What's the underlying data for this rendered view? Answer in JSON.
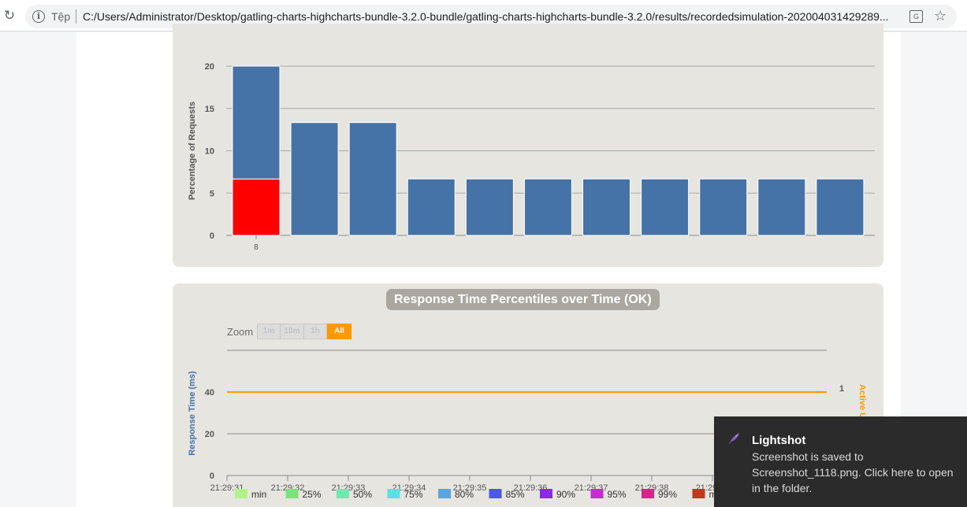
{
  "browser": {
    "site_label": "Tệp",
    "url": "C:/Users/Administrator/Desktop/gatling-charts-highcharts-bundle-3.2.0-bundle/gatling-charts-highcharts-bundle-3.2.0/results/recordedsimulation-202004031429289..."
  },
  "colors": {
    "panel_bg": "#e6e5e0",
    "bar_blue": "#4572a7",
    "bar_red": "#ff0000",
    "active_users": "#ff9900",
    "axis_label_blue": "#4572a7"
  },
  "chart_data": [
    {
      "type": "bar",
      "ylabel": "Percentage of Requests",
      "ylim": [
        0,
        20
      ],
      "yticks": [
        0,
        5,
        10,
        15,
        20
      ],
      "categories": [
        "8",
        "",
        "",
        "",
        "",
        "",
        "",
        "",
        "",
        "",
        ""
      ],
      "series": [
        {
          "color": "#4572a7",
          "values": [
            13.33,
            13.33,
            13.33,
            6.67,
            6.67,
            6.67,
            6.67,
            6.67,
            6.67,
            6.67,
            6.67
          ]
        },
        {
          "color": "#ff0000",
          "values": [
            6.67,
            0,
            0,
            0,
            0,
            0,
            0,
            0,
            0,
            0,
            0
          ]
        }
      ],
      "stacked": true,
      "grid": true
    },
    {
      "type": "line",
      "title": "Response Time Percentiles over Time (OK)",
      "ylabel": "Response Time (ms)",
      "y2label": "Active Users",
      "yticks": [
        0,
        20,
        40
      ],
      "y2ticks": [
        1
      ],
      "x": [
        "21:29:31",
        "21:29:32",
        "21:29:33",
        "21:29:34",
        "21:29:35",
        "21:29:36",
        "21:29:37",
        "21:29:38",
        "21:29:39"
      ],
      "active_users_series": {
        "color": "#ff9900",
        "values": [
          1,
          1,
          1,
          1,
          1,
          1,
          1,
          1,
          1,
          1,
          1
        ]
      },
      "zoom": {
        "label": "Zoom",
        "buttons": [
          "1m",
          "10m",
          "1h",
          "All"
        ],
        "active": "All"
      },
      "legend": [
        {
          "name": "min",
          "color": "#b2f28d"
        },
        {
          "name": "25%",
          "color": "#7ce27c"
        },
        {
          "name": "50%",
          "color": "#6ee9b0"
        },
        {
          "name": "75%",
          "color": "#5ce0e0"
        },
        {
          "name": "80%",
          "color": "#5aa5e0"
        },
        {
          "name": "85%",
          "color": "#4a5ae0"
        },
        {
          "name": "90%",
          "color": "#8a2be2"
        },
        {
          "name": "95%",
          "color": "#c62bd0"
        },
        {
          "name": "99%",
          "color": "#e0218a"
        },
        {
          "name": "max",
          "color": "#c0391b"
        }
      ]
    }
  ],
  "toast": {
    "title": "Lightshot",
    "body": "Screenshot is saved to Screenshot_1118.png. Click here to open in the folder."
  }
}
